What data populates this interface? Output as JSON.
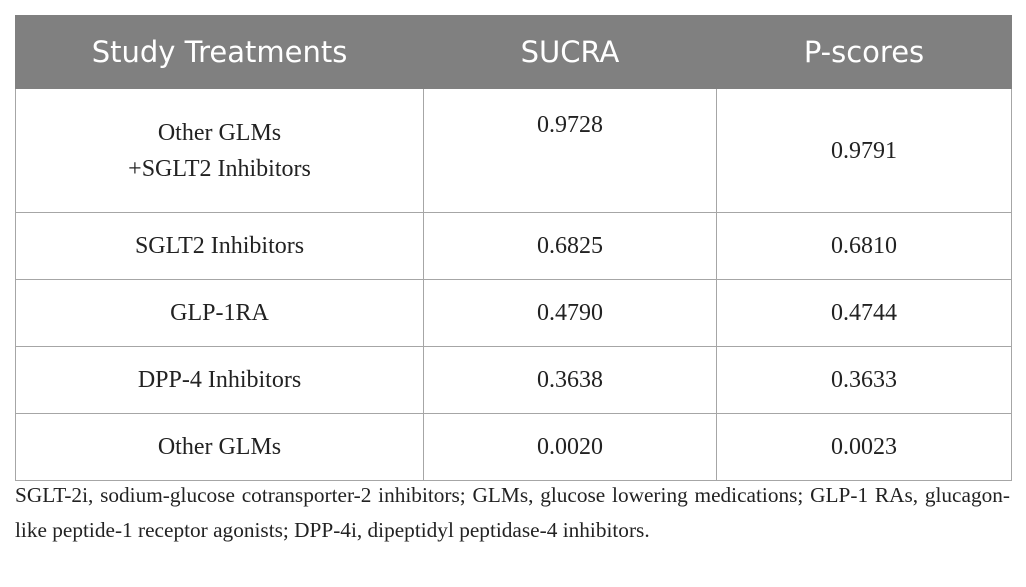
{
  "table": {
    "header": [
      "Study Treatments",
      "SUCRA",
      "P-scores"
    ],
    "rows": [
      [
        [
          "Other GLMs",
          "+SGLT2 Inhibitors"
        ],
        "0.9728",
        "0.9791"
      ],
      [
        "SGLT2 Inhibitors",
        "0.6825",
        "0.6810"
      ],
      [
        "GLP-1RA",
        "0.4790",
        "0.4744"
      ],
      [
        "DPP-4 Inhibitors",
        "0.3638",
        "0.3633"
      ],
      [
        "Other GLMs",
        "0.0020",
        "0.0023"
      ]
    ]
  },
  "footnote": "SGLT-2i, sodium-glucose cotransporter-2 inhibitors; GLMs, glucose lowering medications; GLP-1 RAs, glucagon-like peptide-1 receptor agonists; DPP-4i, dipeptidyl peptidase-4 inhibitors."
}
